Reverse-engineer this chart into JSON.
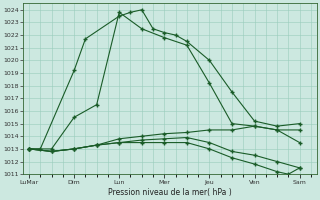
{
  "background_color": "#cce8e0",
  "grid_color": "#99ccbb",
  "line_color": "#1a5c28",
  "xlabel": "Pression niveau de la mer( hPa )",
  "ylim": [
    1011,
    1024.5
  ],
  "yticks": [
    1011,
    1012,
    1013,
    1014,
    1015,
    1016,
    1017,
    1018,
    1019,
    1020,
    1021,
    1022,
    1023,
    1024
  ],
  "day_labels": [
    "LuMar",
    "Dim",
    "Lun",
    "Mer",
    "Jeu",
    "Ven",
    "Sam"
  ],
  "day_positions": [
    0,
    4,
    8,
    12,
    16,
    20,
    24
  ],
  "xlim": [
    -0.5,
    25.5
  ],
  "line1": {
    "x": [
      0,
      1,
      4,
      5,
      8,
      9,
      10,
      11,
      12,
      13,
      14,
      16,
      18,
      20,
      22,
      24
    ],
    "y": [
      1013.0,
      1013.0,
      1019.2,
      1021.7,
      1023.5,
      1023.8,
      1024.0,
      1022.5,
      1022.2,
      1022.0,
      1021.5,
      1020.0,
      1017.5,
      1015.2,
      1014.8,
      1015.0
    ]
  },
  "line2": {
    "x": [
      0,
      2,
      4,
      6,
      8,
      10,
      12,
      14,
      16,
      18,
      20,
      22,
      24
    ],
    "y": [
      1013.0,
      1013.0,
      1015.5,
      1016.5,
      1023.8,
      1022.5,
      1021.8,
      1021.2,
      1018.2,
      1015.0,
      1014.8,
      1014.5,
      1013.5
    ]
  },
  "line3": {
    "x": [
      0,
      2,
      4,
      6,
      8,
      10,
      12,
      14,
      16,
      18,
      20,
      22,
      24
    ],
    "y": [
      1013.0,
      1012.8,
      1013.0,
      1013.3,
      1013.8,
      1014.0,
      1014.2,
      1014.3,
      1014.5,
      1014.5,
      1014.8,
      1014.5,
      1014.5
    ]
  },
  "line4": {
    "x": [
      0,
      2,
      4,
      6,
      8,
      10,
      12,
      14,
      16,
      18,
      20,
      22,
      24
    ],
    "y": [
      1013.0,
      1012.8,
      1013.0,
      1013.3,
      1013.5,
      1013.7,
      1013.8,
      1013.9,
      1013.5,
      1012.8,
      1012.5,
      1012.0,
      1011.5
    ]
  },
  "line5": {
    "x": [
      0,
      2,
      4,
      6,
      8,
      10,
      12,
      14,
      16,
      18,
      20,
      22,
      23,
      24
    ],
    "y": [
      1013.0,
      1012.8,
      1013.0,
      1013.3,
      1013.5,
      1013.5,
      1013.5,
      1013.5,
      1013.0,
      1012.3,
      1011.8,
      1011.2,
      1011.0,
      1011.5
    ]
  }
}
